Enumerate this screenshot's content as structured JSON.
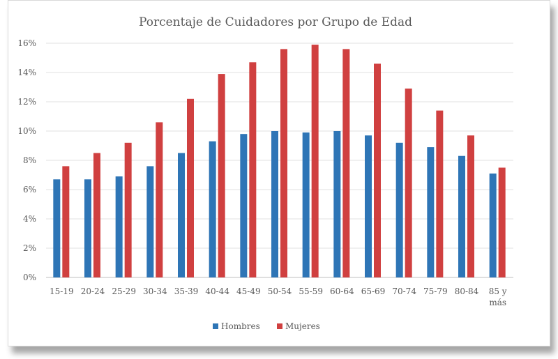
{
  "chart_data": {
    "type": "bar",
    "title": "Porcentaje de Cuidadores por Grupo de Edad",
    "categories": [
      "15-19",
      "20-24",
      "25-29",
      "30-34",
      "35-39",
      "40-44",
      "45-49",
      "50-54",
      "55-59",
      "60-64",
      "65-69",
      "70-74",
      "75-79",
      "80-84",
      "85 y más"
    ],
    "series": [
      {
        "name": "Hombres",
        "color": "#2e75b6",
        "values": [
          6.7,
          6.7,
          6.9,
          7.6,
          8.5,
          9.3,
          9.8,
          10.0,
          9.9,
          10.0,
          9.7,
          9.2,
          8.9,
          8.3,
          7.1
        ]
      },
      {
        "name": "Mujeres",
        "color": "#d04040",
        "values": [
          7.6,
          8.5,
          9.2,
          10.6,
          12.2,
          13.9,
          14.7,
          15.6,
          15.9,
          15.6,
          14.6,
          12.9,
          11.4,
          9.7,
          7.5
        ]
      }
    ],
    "ylim": [
      0,
      16
    ],
    "yticks": [
      "0%",
      "2%",
      "4%",
      "6%",
      "8%",
      "10%",
      "12%",
      "14%",
      "16%"
    ],
    "grid": true,
    "legend": "bottom",
    "xlabel": "",
    "ylabel": ""
  }
}
